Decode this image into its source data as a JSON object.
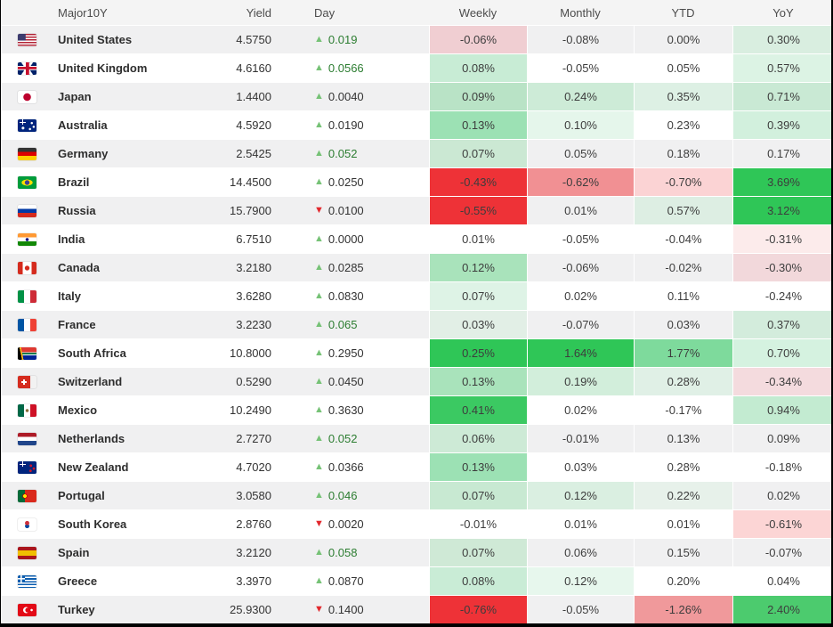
{
  "header": {
    "columns": [
      "Major10Y",
      "Yield",
      "Day",
      "Weekly",
      "Monthly",
      "YTD",
      "YoY"
    ]
  },
  "colors": {
    "header_bg": "#f4f4f4",
    "row_alt_bg": "#f0f0f1",
    "row_bg": "#ffffff",
    "up_triangle": "#76c276",
    "down_triangle": "#e2282d",
    "day_green_text": "#2c7d31",
    "strong_red": "#ee3237",
    "strong_green": "#2fc657"
  },
  "rows": [
    {
      "country": "United States",
      "flag": "us",
      "yield": "4.5750",
      "day": {
        "value": "0.019",
        "dir": "up",
        "color": "green"
      },
      "cells": [
        {
          "v": "-0.06%",
          "bg": "#f0ced2"
        },
        {
          "v": "-0.08%",
          "bg": ""
        },
        {
          "v": "0.00%",
          "bg": ""
        },
        {
          "v": "0.30%",
          "bg": "#d9eee0"
        }
      ]
    },
    {
      "country": "United Kingdom",
      "flag": "gb",
      "yield": "4.6160",
      "day": {
        "value": "0.0566",
        "dir": "up",
        "color": "green"
      },
      "cells": [
        {
          "v": "0.08%",
          "bg": "#c8ecd5"
        },
        {
          "v": "-0.05%",
          "bg": ""
        },
        {
          "v": "0.05%",
          "bg": ""
        },
        {
          "v": "0.57%",
          "bg": "#dcf3e4"
        }
      ]
    },
    {
      "country": "Japan",
      "flag": "jp",
      "yield": "1.4400",
      "day": {
        "value": "0.0040",
        "dir": "up",
        "color": "dark"
      },
      "cells": [
        {
          "v": "0.09%",
          "bg": "#b9e3c6"
        },
        {
          "v": "0.24%",
          "bg": "#cdebd7"
        },
        {
          "v": "0.35%",
          "bg": "#ddf0e4"
        },
        {
          "v": "0.71%",
          "bg": "#c9e9d4"
        }
      ]
    },
    {
      "country": "Australia",
      "flag": "au",
      "yield": "4.5920",
      "day": {
        "value": "0.0190",
        "dir": "up",
        "color": "dark"
      },
      "cells": [
        {
          "v": "0.13%",
          "bg": "#9ce1b4"
        },
        {
          "v": "0.10%",
          "bg": "#e5f6eb"
        },
        {
          "v": "0.23%",
          "bg": ""
        },
        {
          "v": "0.39%",
          "bg": "#d2f0dd"
        }
      ]
    },
    {
      "country": "Germany",
      "flag": "de",
      "yield": "2.5425",
      "day": {
        "value": "0.052",
        "dir": "up",
        "color": "green"
      },
      "cells": [
        {
          "v": "0.07%",
          "bg": "#cbe8d3"
        },
        {
          "v": "0.05%",
          "bg": ""
        },
        {
          "v": "0.18%",
          "bg": ""
        },
        {
          "v": "0.17%",
          "bg": ""
        }
      ]
    },
    {
      "country": "Brazil",
      "flag": "br",
      "yield": "14.4500",
      "day": {
        "value": "0.0250",
        "dir": "up",
        "color": "dark"
      },
      "cells": [
        {
          "v": "-0.43%",
          "bg": "#ee3237"
        },
        {
          "v": "-0.62%",
          "bg": "#f19093"
        },
        {
          "v": "-0.70%",
          "bg": "#fbd3d4"
        },
        {
          "v": "3.69%",
          "bg": "#2fc657"
        }
      ]
    },
    {
      "country": "Russia",
      "flag": "ru",
      "yield": "15.7900",
      "day": {
        "value": "0.0100",
        "dir": "down",
        "color": "dark"
      },
      "cells": [
        {
          "v": "-0.55%",
          "bg": "#ee3237"
        },
        {
          "v": "0.01%",
          "bg": ""
        },
        {
          "v": "0.57%",
          "bg": "#ddeee3"
        },
        {
          "v": "3.12%",
          "bg": "#2fc657"
        }
      ]
    },
    {
      "country": "India",
      "flag": "in",
      "yield": "6.7510",
      "day": {
        "value": "0.0000",
        "dir": "up",
        "color": "dark"
      },
      "cells": [
        {
          "v": "0.01%",
          "bg": ""
        },
        {
          "v": "-0.05%",
          "bg": ""
        },
        {
          "v": "-0.04%",
          "bg": ""
        },
        {
          "v": "-0.31%",
          "bg": "#fcebeb"
        }
      ]
    },
    {
      "country": "Canada",
      "flag": "ca",
      "yield": "3.2180",
      "day": {
        "value": "0.0285",
        "dir": "up",
        "color": "dark"
      },
      "cells": [
        {
          "v": "0.12%",
          "bg": "#a9e3bb"
        },
        {
          "v": "-0.06%",
          "bg": ""
        },
        {
          "v": "-0.02%",
          "bg": ""
        },
        {
          "v": "-0.30%",
          "bg": "#f2d8db"
        }
      ]
    },
    {
      "country": "Italy",
      "flag": "it",
      "yield": "3.6280",
      "day": {
        "value": "0.0830",
        "dir": "up",
        "color": "dark"
      },
      "cells": [
        {
          "v": "0.07%",
          "bg": "#def3e6"
        },
        {
          "v": "0.02%",
          "bg": ""
        },
        {
          "v": "0.11%",
          "bg": ""
        },
        {
          "v": "-0.24%",
          "bg": ""
        }
      ]
    },
    {
      "country": "France",
      "flag": "fr",
      "yield": "3.2230",
      "day": {
        "value": "0.065",
        "dir": "up",
        "color": "green"
      },
      "cells": [
        {
          "v": "0.03%",
          "bg": "#e2efe6"
        },
        {
          "v": "-0.07%",
          "bg": ""
        },
        {
          "v": "0.03%",
          "bg": ""
        },
        {
          "v": "0.37%",
          "bg": "#d3ecdc"
        }
      ]
    },
    {
      "country": "South Africa",
      "flag": "za",
      "yield": "10.8000",
      "day": {
        "value": "0.2950",
        "dir": "up",
        "color": "dark"
      },
      "cells": [
        {
          "v": "0.25%",
          "bg": "#2fc657"
        },
        {
          "v": "1.64%",
          "bg": "#2fc657"
        },
        {
          "v": "1.77%",
          "bg": "#7eda9c"
        },
        {
          "v": "0.70%",
          "bg": "#d5f2e0"
        }
      ]
    },
    {
      "country": "Switzerland",
      "flag": "ch",
      "yield": "0.5290",
      "day": {
        "value": "0.0450",
        "dir": "up",
        "color": "dark"
      },
      "cells": [
        {
          "v": "0.13%",
          "bg": "#a9e3bb"
        },
        {
          "v": "0.19%",
          "bg": "#d2eedb"
        },
        {
          "v": "0.28%",
          "bg": "#e0f0e6"
        },
        {
          "v": "-0.34%",
          "bg": "#f4dbde"
        }
      ]
    },
    {
      "country": "Mexico",
      "flag": "mx",
      "yield": "10.2490",
      "day": {
        "value": "0.3630",
        "dir": "up",
        "color": "dark"
      },
      "cells": [
        {
          "v": "0.41%",
          "bg": "#3bc962"
        },
        {
          "v": "0.02%",
          "bg": ""
        },
        {
          "v": "-0.17%",
          "bg": ""
        },
        {
          "v": "0.94%",
          "bg": "#c3ebd1"
        }
      ]
    },
    {
      "country": "Netherlands",
      "flag": "nl",
      "yield": "2.7270",
      "day": {
        "value": "0.052",
        "dir": "up",
        "color": "green"
      },
      "cells": [
        {
          "v": "0.06%",
          "bg": "#cdead6"
        },
        {
          "v": "-0.01%",
          "bg": ""
        },
        {
          "v": "0.13%",
          "bg": ""
        },
        {
          "v": "0.09%",
          "bg": ""
        }
      ]
    },
    {
      "country": "New Zealand",
      "flag": "nz",
      "yield": "4.7020",
      "day": {
        "value": "0.0366",
        "dir": "up",
        "color": "dark"
      },
      "cells": [
        {
          "v": "0.13%",
          "bg": "#9ce1b4"
        },
        {
          "v": "0.03%",
          "bg": ""
        },
        {
          "v": "0.28%",
          "bg": ""
        },
        {
          "v": "-0.18%",
          "bg": ""
        }
      ]
    },
    {
      "country": "Portugal",
      "flag": "pt",
      "yield": "3.0580",
      "day": {
        "value": "0.046",
        "dir": "up",
        "color": "green"
      },
      "cells": [
        {
          "v": "0.07%",
          "bg": "#c8e9d2"
        },
        {
          "v": "0.12%",
          "bg": "#daefe1"
        },
        {
          "v": "0.22%",
          "bg": "#e7f1ea"
        },
        {
          "v": "0.02%",
          "bg": ""
        }
      ]
    },
    {
      "country": "South Korea",
      "flag": "kr",
      "yield": "2.8760",
      "day": {
        "value": "0.0020",
        "dir": "down",
        "color": "dark"
      },
      "cells": [
        {
          "v": "-0.01%",
          "bg": ""
        },
        {
          "v": "0.01%",
          "bg": ""
        },
        {
          "v": "0.01%",
          "bg": ""
        },
        {
          "v": "-0.61%",
          "bg": "#fcd5d5"
        }
      ]
    },
    {
      "country": "Spain",
      "flag": "es",
      "yield": "3.2120",
      "day": {
        "value": "0.058",
        "dir": "up",
        "color": "green"
      },
      "cells": [
        {
          "v": "0.07%",
          "bg": "#cfe9d6"
        },
        {
          "v": "0.06%",
          "bg": ""
        },
        {
          "v": "0.15%",
          "bg": ""
        },
        {
          "v": "-0.07%",
          "bg": ""
        }
      ]
    },
    {
      "country": "Greece",
      "flag": "gr",
      "yield": "3.3970",
      "day": {
        "value": "0.0870",
        "dir": "up",
        "color": "dark"
      },
      "cells": [
        {
          "v": "0.08%",
          "bg": "#c9ecd6"
        },
        {
          "v": "0.12%",
          "bg": "#e7f7ed"
        },
        {
          "v": "0.20%",
          "bg": ""
        },
        {
          "v": "0.04%",
          "bg": ""
        }
      ]
    },
    {
      "country": "Turkey",
      "flag": "tr",
      "yield": "25.9300",
      "day": {
        "value": "0.1400",
        "dir": "down",
        "color": "dark"
      },
      "cells": [
        {
          "v": "-0.76%",
          "bg": "#ee3237"
        },
        {
          "v": "-0.05%",
          "bg": ""
        },
        {
          "v": "-1.26%",
          "bg": "#f0999b"
        },
        {
          "v": "2.40%",
          "bg": "#4ccb6e"
        }
      ]
    }
  ]
}
